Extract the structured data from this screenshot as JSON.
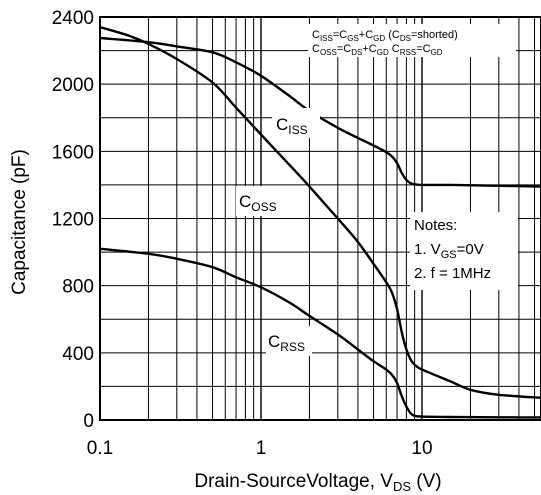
{
  "chart_data": {
    "type": "line",
    "xscale": "log",
    "xlim": [
      0.1,
      60
    ],
    "ylim": [
      0,
      2400
    ],
    "grid": true,
    "x_ticks": [
      "0.1",
      "1",
      "10"
    ],
    "y_ticks": [
      "0",
      "400",
      "800",
      "1200",
      "1600",
      "2000",
      "2400"
    ],
    "xlabel": {
      "main": "Drain-SourceVoltage, V",
      "sub": "DS",
      "tail": " (V)"
    },
    "ylabel": "Capacitance (pF)",
    "equations": {
      "line1": {
        "a": "C",
        "a_sub": "ISS",
        "b": "=C",
        "b_sub": "GS",
        "c": "+C",
        "c_sub": "GD",
        "d": " (C",
        "d_sub": "DS",
        "e": "=shorted)"
      },
      "line2": {
        "a": "C",
        "a_sub": "OSS",
        "b": "=C",
        "b_sub": "DS",
        "c": "+C",
        "c_sub": "GD",
        "d": "  C",
        "d_sub": "RSS",
        "e": "=C",
        "e_sub": "GD"
      }
    },
    "notes": {
      "title": "Notes:",
      "n1_prefix": "1. V",
      "n1_sub": "GS",
      "n1_suffix": "=0V",
      "n2": "2. f = 1MHz"
    },
    "series": [
      {
        "name": "ISS",
        "label_main": "C",
        "label_sub": "ISS",
        "x": [
          0.1,
          0.2,
          0.3,
          0.5,
          0.7,
          1,
          1.5,
          2,
          3,
          4,
          5,
          6,
          6.5,
          7,
          7.5,
          8,
          8.5,
          9,
          10,
          15,
          20,
          30,
          60
        ],
        "values": [
          2275,
          2250,
          2225,
          2190,
          2130,
          2050,
          1930,
          1840,
          1740,
          1680,
          1635,
          1595,
          1570,
          1530,
          1470,
          1430,
          1410,
          1405,
          1400,
          1400,
          1398,
          1395,
          1390
        ]
      },
      {
        "name": "OSS",
        "label_main": "C",
        "label_sub": "OSS",
        "x": [
          0.1,
          0.15,
          0.2,
          0.3,
          0.5,
          0.7,
          1,
          1.5,
          2,
          3,
          4,
          5,
          6,
          6.5,
          7,
          7.5,
          8,
          8.5,
          9,
          10,
          15,
          20,
          30,
          60
        ],
        "values": [
          2340,
          2290,
          2240,
          2150,
          2010,
          1860,
          1700,
          1520,
          1390,
          1200,
          1060,
          930,
          820,
          760,
          660,
          520,
          420,
          360,
          330,
          300,
          230,
          180,
          150,
          130
        ]
      },
      {
        "name": "RSS",
        "label_main": "C",
        "label_sub": "RSS",
        "x": [
          0.1,
          0.2,
          0.3,
          0.5,
          0.7,
          1,
          1.5,
          2,
          3,
          4,
          5,
          6,
          6.5,
          7,
          7.5,
          8,
          8.5,
          9,
          10,
          15,
          20,
          30,
          60
        ],
        "values": [
          1020,
          990,
          960,
          910,
          850,
          790,
          700,
          620,
          510,
          420,
          350,
          300,
          270,
          220,
          140,
          80,
          40,
          25,
          20,
          18,
          17,
          16,
          15
        ]
      }
    ]
  }
}
